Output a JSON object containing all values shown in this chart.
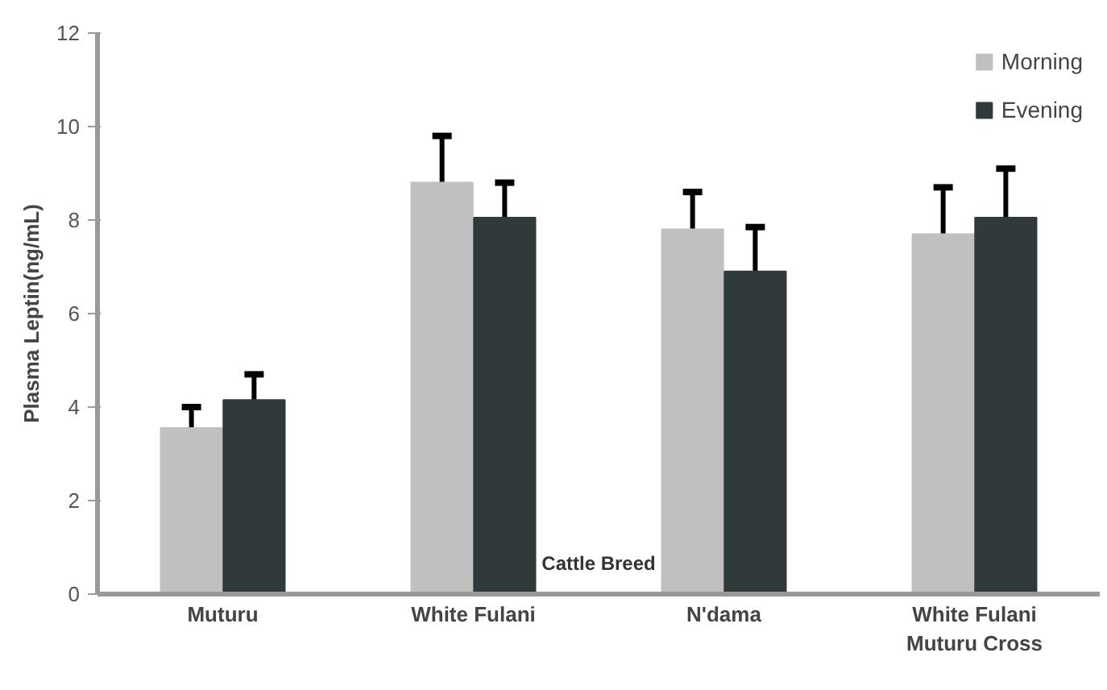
{
  "chart_data": {
    "type": "bar",
    "xlabel": "Cattle Breed",
    "ylabel": "Plasma Leptin(ng/mL)",
    "categories": [
      "Muturu",
      "White Fulani",
      "N'dama",
      "White Fulani\nMuturu Cross"
    ],
    "series": [
      {
        "name": "Morning",
        "color": "#c0c0c0",
        "values": [
          3.55,
          8.8,
          7.8,
          7.7
        ],
        "errors": [
          [
            3.55,
            4.0
          ],
          [
            8.8,
            9.8
          ],
          [
            7.8,
            8.6
          ],
          [
            7.7,
            8.7
          ]
        ]
      },
      {
        "name": "Evening",
        "color": "#313a3a",
        "values": [
          4.15,
          8.05,
          6.9,
          8.05
        ],
        "errors": [
          [
            4.15,
            4.7
          ],
          [
            8.05,
            8.8
          ],
          [
            6.9,
            7.85
          ],
          [
            8.05,
            9.1
          ]
        ]
      }
    ],
    "ylim": [
      0,
      12
    ],
    "yticks": [
      0,
      2,
      4,
      6,
      8,
      10,
      12
    ],
    "grid": false,
    "legend": "top right"
  }
}
